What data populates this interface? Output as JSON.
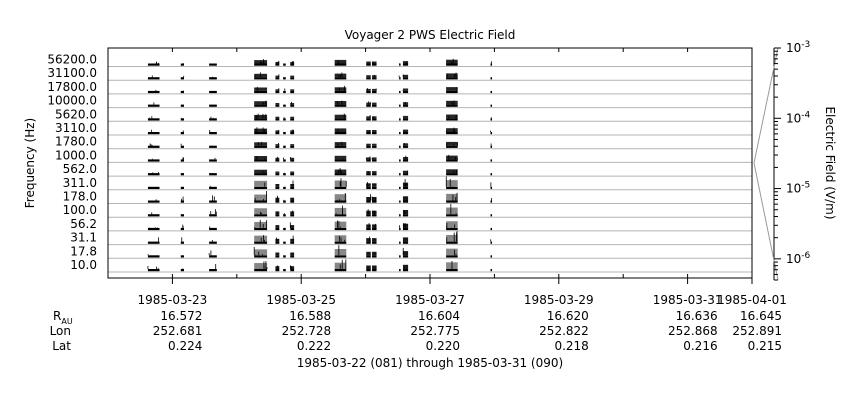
{
  "chart_data": {
    "type": "line",
    "title": "Voyager 2 PWS Electric Field",
    "ylabel": "Frequency (Hz)",
    "y_channels": [
      "56200.0",
      "31100.0",
      "17800.0",
      "10000.0",
      "5620.0",
      "3110.0",
      "1780.0",
      "1000.0",
      "562.0",
      "311.0",
      "178.0",
      "100.0",
      "56.2",
      "31.1",
      "17.8",
      "10.0"
    ],
    "y_tick_labels": [
      "56200.0",
      "31100.0",
      "17800.0",
      "10000.0",
      "5620.0",
      "3110.0",
      "1780.0",
      "1000.0",
      "562.0",
      "311.0",
      "178.0",
      "100.0",
      "56.2",
      "31.1",
      "17.8",
      "10.0"
    ],
    "x_tick_labels": [
      "1985-03-23",
      "1985-03-25",
      "1985-03-27",
      "1985-03-29",
      "1985-03-31",
      "1985-04-01"
    ],
    "xlim": [
      "1985-03-22",
      "1985-04-01"
    ],
    "scale": {
      "label": "Electric Field (V/m)",
      "type": "log",
      "range": [
        5e-07,
        0.001
      ],
      "ticks": [
        {
          "value": 0.001,
          "base": "10",
          "exp": "-3"
        },
        {
          "value": 0.0001,
          "base": "10",
          "exp": "-4"
        },
        {
          "value": 1e-05,
          "base": "10",
          "exp": "-5"
        },
        {
          "value": 1e-06,
          "base": "10",
          "exp": "-6"
        }
      ]
    },
    "data_intervals": [
      {
        "start": 0.62,
        "end": 0.8,
        "activity": 0.2
      },
      {
        "start": 1.13,
        "end": 1.18,
        "activity": 0.15
      },
      {
        "start": 1.57,
        "end": 1.69,
        "activity": 0.25
      },
      {
        "start": 2.27,
        "end": 2.47,
        "activity": 0.85
      },
      {
        "start": 2.6,
        "end": 2.66,
        "activity": 0.4
      },
      {
        "start": 2.72,
        "end": 2.76,
        "activity": 0.3
      },
      {
        "start": 2.83,
        "end": 2.89,
        "activity": 0.4
      },
      {
        "start": 3.52,
        "end": 3.7,
        "activity": 0.9
      },
      {
        "start": 4.01,
        "end": 4.08,
        "activity": 0.5
      },
      {
        "start": 4.1,
        "end": 4.17,
        "activity": 0.5
      },
      {
        "start": 4.52,
        "end": 4.53,
        "activity": 0.3
      },
      {
        "start": 4.58,
        "end": 4.66,
        "activity": 0.6
      },
      {
        "start": 5.25,
        "end": 5.43,
        "activity": 0.95
      },
      {
        "start": 5.94,
        "end": 5.96,
        "activity": 0.3
      }
    ],
    "ephemeris": {
      "rows": [
        {
          "label": "R",
          "sub": "AU",
          "values": [
            "16.572",
            "16.588",
            "16.604",
            "16.620",
            "16.636",
            "16.645"
          ]
        },
        {
          "label": "Lon",
          "values": [
            "252.681",
            "252.728",
            "252.775",
            "252.822",
            "252.868",
            "252.891"
          ]
        },
        {
          "label": "Lat",
          "values": [
            "0.224",
            "0.222",
            "0.220",
            "0.218",
            "0.216",
            "0.215"
          ]
        }
      ]
    },
    "date_range_label": "1985-03-22 (081) through 1985-03-31 (090)",
    "grid": true
  }
}
